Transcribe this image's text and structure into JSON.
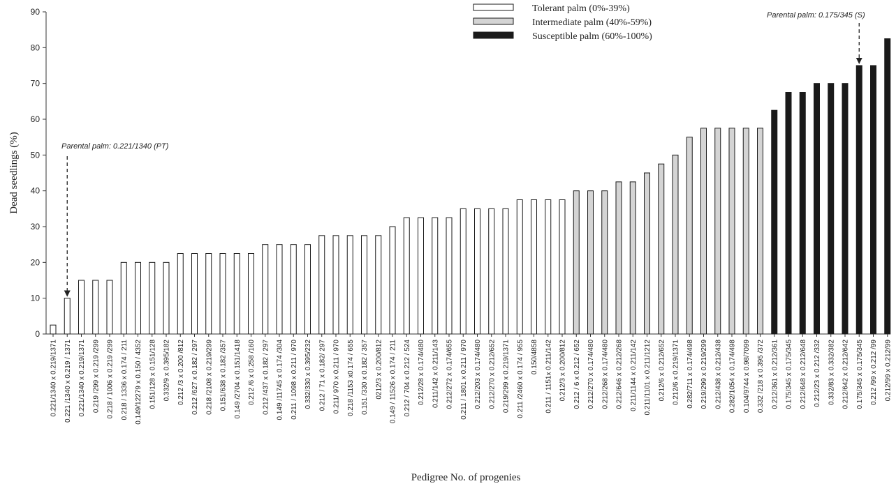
{
  "chart_data": {
    "type": "bar",
    "title": "",
    "ylabel": "Dead seedlings    (%)",
    "xlabel": "Pedigree  No. of progenies",
    "ylim": [
      0,
      90
    ],
    "yticks": [
      0,
      10,
      20,
      30,
      40,
      50,
      60,
      70,
      80,
      90
    ],
    "grid": false,
    "legend_position": "top-right",
    "categories": [
      "0.221/1340 x 0.219/1371",
      "0.221 /1340 x 0.219 / 1371",
      "0.221/1340 x 0.219/1371",
      "0.219 /299 x 0.219 /299",
      "0.218 / 1006 x 0.219 /299",
      "0.218 / 1336 x 0.174 / 211",
      "0.149/12279 x 0.150 / 4352",
      "0.151/128 x 0.151/128",
      "0.332/9 x 0.395/182",
      "0.212 /3 x 0.200 /812",
      "0.212 /627 x 0.182 / 297",
      "0.218 /2108 x 0.219/299",
      "0.151/638 x 0.182 /357",
      "0.149 /2704 x 0.151/1418",
      "0.212 /6 x 0.258 /160",
      "0.212 /437 x 0.182 / 297",
      "0.149 /11745 x 0.174 /304",
      "0.211 / 1098 x 0.211 / 970",
      "0.332/330 x 0.395/232",
      "0.212 / 71 x 0.182/ 297",
      "0.211/ 970 x 0.211 / 970",
      "0.218 /1153 x0.174 / 655",
      "0.151 /330 x 0.182 / 357",
      "0212/3 x 0.200/812",
      "0.149 / 11526 x 0.174 / 211",
      "0.212 / 704 x 0.212 / 524",
      "0.212/28 x 0.174/480",
      "0.211/142 x 0.211/143",
      "0.212/272 x 0.174/655",
      "0.211 / 1801 x 0.211 / 970",
      "0.212/203 x 0.174/480",
      "0.212/270 x 0.212/652",
      "0.219/299 x 0.219/1371",
      "0.211 /2460 x 0.174 / 955",
      "0.150/4858",
      "0.211 / 1151x 0.211/142",
      "0.212/3 x 0.200/812",
      "0.212 / 6 x 0.212 / 652",
      "0.212/270 x 0.174/480",
      "0.212/268 x 0.174/480",
      "0.212/646 x 0.212/268",
      "0.211/1144 x 0.211/142",
      "0.211/1101 x 0.211/1212",
      "0.212/6 x 0.212/652",
      "0.212/6 x 0.219/1371",
      "0.282/711 x 0.174/498",
      "0.219/299 x 0.219/299",
      "0.212/438 x 0.212/438",
      "0.282/1054 x 0.174/498",
      "0.104/9744 x 0.98/7099",
      "0.332 /218 x 0.395 /372",
      "0.212/361 x 0.212/361",
      "0.175/345 x 0.175/345",
      "0.212/648 x 0.212/648",
      "0.212/23 x 0.212 /332",
      "0.332/83 x 0.332/382",
      "0.212/642 x 0.212/642",
      "0.175/345 x 0.175/345",
      "0.212 /99 x 0.212 /99",
      "0.212/99 x 0.212/99"
    ],
    "values": [
      2.5,
      10,
      15,
      15,
      15,
      20,
      20,
      20,
      20,
      22.5,
      22.5,
      22.5,
      22.5,
      22.5,
      22.5,
      25,
      25,
      25,
      25,
      27.5,
      27.5,
      27.5,
      27.5,
      27.5,
      30,
      32.5,
      32.5,
      32.5,
      32.5,
      35,
      35,
      35,
      35,
      37.5,
      37.5,
      37.5,
      37.5,
      40,
      40,
      40,
      42.5,
      42.5,
      45,
      47.5,
      50,
      55,
      57.5,
      57.5,
      57.5,
      57.5,
      57.5,
      62.5,
      67.5,
      67.5,
      70,
      70,
      70,
      75,
      75,
      82.5
    ],
    "classes": [
      "tolerant",
      "tolerant",
      "tolerant",
      "tolerant",
      "tolerant",
      "tolerant",
      "tolerant",
      "tolerant",
      "tolerant",
      "tolerant",
      "tolerant",
      "tolerant",
      "tolerant",
      "tolerant",
      "tolerant",
      "tolerant",
      "tolerant",
      "tolerant",
      "tolerant",
      "tolerant",
      "tolerant",
      "tolerant",
      "tolerant",
      "tolerant",
      "tolerant",
      "tolerant",
      "tolerant",
      "tolerant",
      "tolerant",
      "tolerant",
      "tolerant",
      "tolerant",
      "tolerant",
      "tolerant",
      "tolerant",
      "tolerant",
      "tolerant",
      "intermediate",
      "intermediate",
      "intermediate",
      "intermediate",
      "intermediate",
      "intermediate",
      "intermediate",
      "intermediate",
      "intermediate",
      "intermediate",
      "intermediate",
      "intermediate",
      "intermediate",
      "intermediate",
      "susceptible",
      "susceptible",
      "susceptible",
      "susceptible",
      "susceptible",
      "susceptible",
      "susceptible",
      "susceptible",
      "susceptible"
    ],
    "legend": [
      {
        "key": "tolerant",
        "label": "Tolerant palm (0%-39%)",
        "fill": "#ffffff"
      },
      {
        "key": "intermediate",
        "label": "Intermediate palm (40%-59%)",
        "fill": "#d4d4d4"
      },
      {
        "key": "susceptible",
        "label": "Susceptible palm (60%-100%)",
        "fill": "#1a1a1a"
      }
    ],
    "annotations": [
      {
        "text": "Parental palm: 0.221/1340 (PT)",
        "category_index": 1,
        "value": 10
      },
      {
        "text": "Parental palm: 0.175/345 (S)",
        "category_index": 57,
        "value": 75
      }
    ],
    "colors": {
      "stroke": "#1a1a1a",
      "axis": "#333333"
    }
  }
}
